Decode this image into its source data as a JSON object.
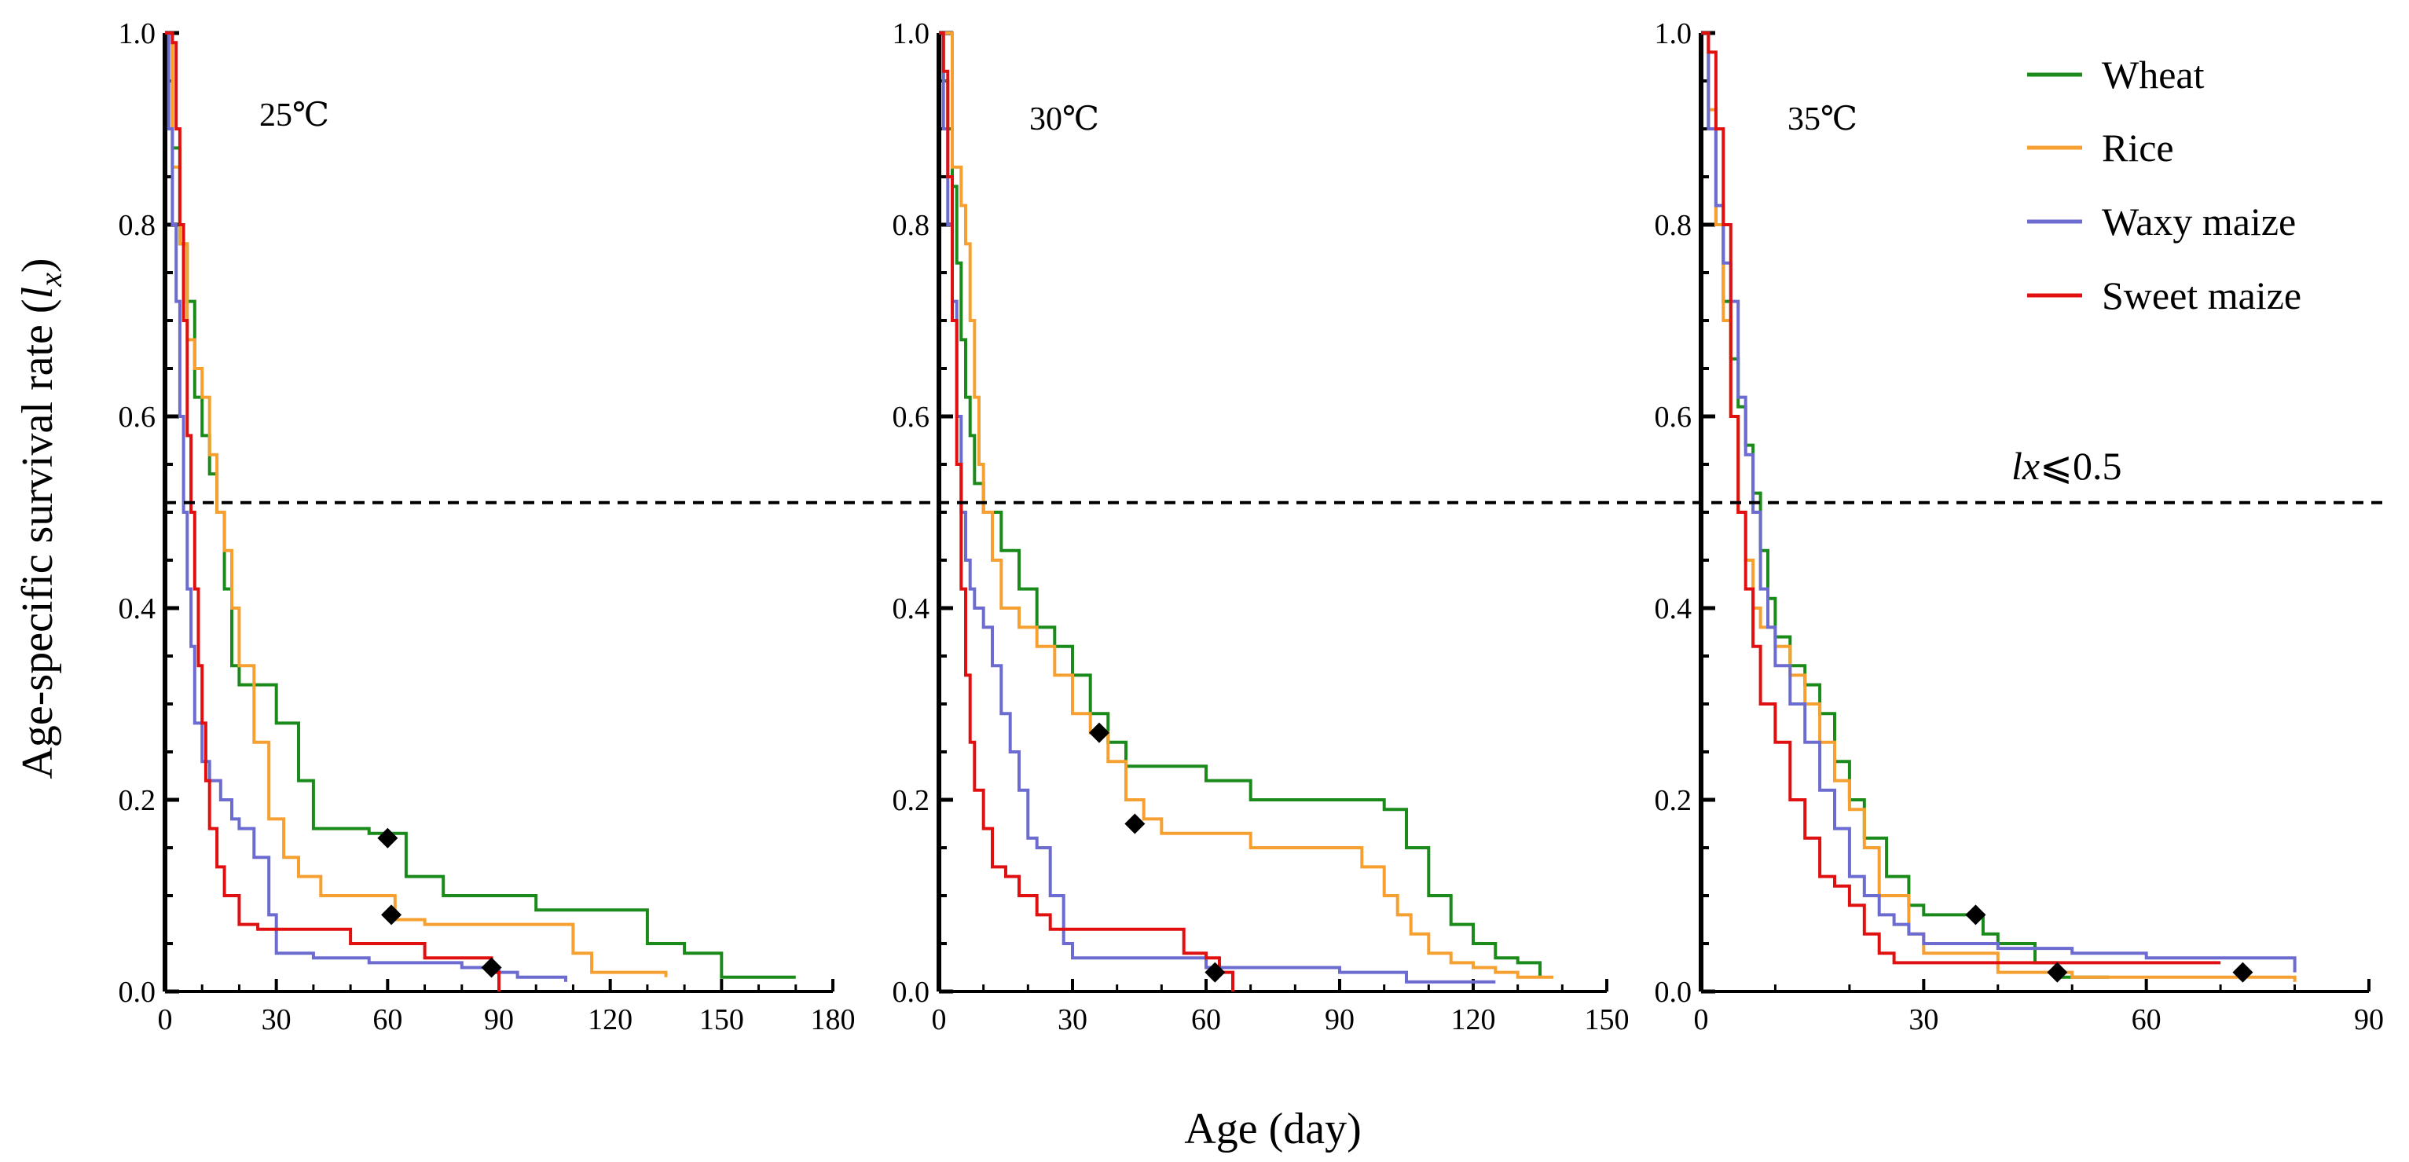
{
  "figure": {
    "ylabel_main": "Age-specific survival rate (",
    "ylabel_italic": "l",
    "ylabel_sub": "x",
    "ylabel_close": ")",
    "xlabel": "Age (day)",
    "threshold_prefix": "lx",
    "threshold_text": "⩽0.5",
    "threshold_value": 0.51
  },
  "legend": [
    {
      "name": "Wheat",
      "color": "#1a8a1a"
    },
    {
      "name": "Rice",
      "color": "#f5a030"
    },
    {
      "name": "Waxy maize",
      "color": "#6b6bd0"
    },
    {
      "name": "Sweet maize",
      "color": "#e01010"
    }
  ],
  "chart_data": [
    {
      "type": "line",
      "step": true,
      "title": "25℃",
      "xlim": [
        0,
        180
      ],
      "xticks": [
        0,
        30,
        60,
        90,
        120,
        150,
        180
      ],
      "ylim": [
        0,
        1.0
      ],
      "yticks": [
        "0.0",
        "0.2",
        "0.4",
        "0.6",
        "0.8",
        "1.0"
      ],
      "series": [
        {
          "name": "Wheat",
          "x": [
            0,
            2,
            4,
            6,
            8,
            10,
            12,
            14,
            16,
            18,
            20,
            22,
            30,
            36,
            40,
            45,
            55,
            65,
            75,
            100,
            130,
            140,
            150,
            170
          ],
          "y": [
            1.0,
            0.88,
            0.78,
            0.72,
            0.62,
            0.58,
            0.54,
            0.5,
            0.42,
            0.34,
            0.32,
            0.32,
            0.28,
            0.22,
            0.17,
            0.17,
            0.165,
            0.12,
            0.1,
            0.085,
            0.05,
            0.04,
            0.015,
            0.015
          ]
        },
        {
          "name": "Rice",
          "x": [
            0,
            2,
            4,
            6,
            8,
            10,
            12,
            14,
            16,
            18,
            20,
            24,
            28,
            32,
            36,
            42,
            50,
            62,
            70,
            110,
            115,
            135
          ],
          "y": [
            1.0,
            0.86,
            0.78,
            0.68,
            0.65,
            0.62,
            0.56,
            0.5,
            0.46,
            0.4,
            0.34,
            0.26,
            0.18,
            0.14,
            0.12,
            0.1,
            0.1,
            0.075,
            0.07,
            0.04,
            0.02,
            0.015
          ]
        },
        {
          "name": "Waxy maize",
          "x": [
            0,
            1,
            2,
            3,
            4,
            5,
            6,
            7,
            8,
            10,
            12,
            15,
            18,
            20,
            24,
            28,
            30,
            35,
            40,
            55,
            80,
            90,
            95,
            108
          ],
          "y": [
            1.0,
            0.9,
            0.8,
            0.72,
            0.6,
            0.5,
            0.42,
            0.36,
            0.28,
            0.24,
            0.22,
            0.2,
            0.18,
            0.17,
            0.14,
            0.08,
            0.04,
            0.04,
            0.035,
            0.03,
            0.025,
            0.02,
            0.015,
            0.01
          ]
        },
        {
          "name": "Sweet maize",
          "x": [
            0,
            2,
            3,
            4,
            5,
            6,
            7,
            8,
            9,
            10,
            11,
            12,
            14,
            16,
            20,
            25,
            40,
            50,
            65,
            70,
            85,
            88,
            90
          ],
          "y": [
            1.0,
            0.99,
            0.9,
            0.8,
            0.7,
            0.58,
            0.5,
            0.42,
            0.34,
            0.28,
            0.22,
            0.17,
            0.13,
            0.1,
            0.07,
            0.065,
            0.065,
            0.05,
            0.05,
            0.035,
            0.035,
            0.02,
            0.0
          ]
        }
      ],
      "markers": [
        {
          "x": 60,
          "y": 0.16
        },
        {
          "x": 61,
          "y": 0.08
        },
        {
          "x": 88,
          "y": 0.025
        }
      ]
    },
    {
      "type": "line",
      "step": true,
      "title": "30℃",
      "xlim": [
        0,
        150
      ],
      "xticks": [
        0,
        30,
        60,
        90,
        120,
        150
      ],
      "ylim": [
        0,
        1.0
      ],
      "yticks": [
        "0.0",
        "0.2",
        "0.4",
        "0.6",
        "0.8",
        "1.0"
      ],
      "series": [
        {
          "name": "Wheat",
          "x": [
            0,
            1,
            2,
            3,
            4,
            5,
            6,
            7,
            8,
            10,
            14,
            18,
            22,
            26,
            30,
            34,
            38,
            42,
            50,
            60,
            70,
            100,
            105,
            110,
            115,
            120,
            125,
            130,
            135
          ],
          "y": [
            1.0,
            0.95,
            0.9,
            0.84,
            0.76,
            0.68,
            0.62,
            0.58,
            0.53,
            0.5,
            0.46,
            0.42,
            0.38,
            0.36,
            0.33,
            0.29,
            0.26,
            0.235,
            0.235,
            0.22,
            0.2,
            0.19,
            0.15,
            0.1,
            0.07,
            0.05,
            0.035,
            0.03,
            0.015
          ]
        },
        {
          "name": "Rice",
          "x": [
            0,
            3,
            5,
            6,
            7,
            8,
            9,
            10,
            12,
            14,
            18,
            22,
            26,
            30,
            34,
            38,
            42,
            46,
            50,
            70,
            95,
            100,
            103,
            106,
            110,
            115,
            120,
            125,
            130,
            138
          ],
          "y": [
            1.0,
            0.86,
            0.82,
            0.78,
            0.7,
            0.62,
            0.55,
            0.5,
            0.45,
            0.4,
            0.38,
            0.36,
            0.33,
            0.29,
            0.27,
            0.24,
            0.2,
            0.18,
            0.165,
            0.15,
            0.13,
            0.1,
            0.08,
            0.06,
            0.04,
            0.03,
            0.025,
            0.02,
            0.015,
            0.015
          ]
        },
        {
          "name": "Waxy maize",
          "x": [
            0,
            1,
            2,
            3,
            4,
            5,
            6,
            7,
            8,
            10,
            12,
            14,
            16,
            18,
            20,
            22,
            25,
            28,
            30,
            40,
            60,
            90,
            105,
            125
          ],
          "y": [
            1.0,
            0.9,
            0.8,
            0.72,
            0.6,
            0.5,
            0.45,
            0.42,
            0.4,
            0.38,
            0.34,
            0.29,
            0.25,
            0.21,
            0.16,
            0.15,
            0.1,
            0.05,
            0.035,
            0.035,
            0.025,
            0.02,
            0.01,
            0.01
          ]
        },
        {
          "name": "Sweet maize",
          "x": [
            0,
            1,
            2,
            3,
            4,
            5,
            6,
            7,
            8,
            10,
            12,
            15,
            18,
            22,
            25,
            40,
            55,
            60,
            63,
            66
          ],
          "y": [
            1.0,
            0.96,
            0.85,
            0.7,
            0.55,
            0.42,
            0.33,
            0.26,
            0.21,
            0.17,
            0.13,
            0.12,
            0.1,
            0.08,
            0.065,
            0.065,
            0.04,
            0.035,
            0.02,
            0.0
          ]
        }
      ],
      "markers": [
        {
          "x": 36,
          "y": 0.27
        },
        {
          "x": 44,
          "y": 0.175
        },
        {
          "x": 62,
          "y": 0.02
        }
      ]
    },
    {
      "type": "line",
      "step": true,
      "title": "35℃",
      "xlim": [
        0,
        90
      ],
      "xticks": [
        0,
        30,
        60,
        90
      ],
      "ylim": [
        0,
        1.0
      ],
      "yticks": [
        "0.0",
        "0.2",
        "0.4",
        "0.6",
        "0.8",
        "1.0"
      ],
      "series": [
        {
          "name": "Wheat",
          "x": [
            0,
            1,
            2,
            3,
            4,
            5,
            6,
            7,
            8,
            9,
            10,
            12,
            14,
            16,
            18,
            20,
            22,
            25,
            28,
            30,
            35,
            38,
            40,
            45,
            48,
            55
          ],
          "y": [
            1.0,
            0.9,
            0.8,
            0.72,
            0.66,
            0.61,
            0.57,
            0.52,
            0.46,
            0.41,
            0.37,
            0.34,
            0.32,
            0.29,
            0.24,
            0.2,
            0.16,
            0.12,
            0.09,
            0.08,
            0.08,
            0.06,
            0.05,
            0.03,
            0.015,
            0.015
          ]
        },
        {
          "name": "Rice",
          "x": [
            0,
            1,
            2,
            3,
            4,
            5,
            6,
            7,
            8,
            10,
            12,
            14,
            16,
            18,
            20,
            22,
            24,
            28,
            30,
            40,
            50,
            60,
            80
          ],
          "y": [
            1.0,
            0.92,
            0.8,
            0.7,
            0.6,
            0.5,
            0.45,
            0.4,
            0.38,
            0.36,
            0.33,
            0.3,
            0.26,
            0.22,
            0.19,
            0.15,
            0.1,
            0.06,
            0.04,
            0.02,
            0.015,
            0.015,
            0.01
          ]
        },
        {
          "name": "Waxy maize",
          "x": [
            0,
            1,
            2,
            3,
            4,
            5,
            6,
            7,
            8,
            9,
            10,
            12,
            14,
            16,
            18,
            20,
            22,
            24,
            26,
            28,
            30,
            40,
            50,
            60,
            80
          ],
          "y": [
            1.0,
            0.9,
            0.82,
            0.76,
            0.72,
            0.62,
            0.56,
            0.5,
            0.42,
            0.38,
            0.34,
            0.3,
            0.26,
            0.21,
            0.17,
            0.12,
            0.1,
            0.08,
            0.07,
            0.06,
            0.05,
            0.045,
            0.04,
            0.035,
            0.02
          ]
        },
        {
          "name": "Sweet maize",
          "x": [
            0,
            1,
            2,
            3,
            4,
            5,
            6,
            7,
            8,
            10,
            12,
            14,
            16,
            18,
            20,
            22,
            24,
            26,
            30,
            35,
            50,
            70
          ],
          "y": [
            1.0,
            0.98,
            0.9,
            0.8,
            0.6,
            0.5,
            0.42,
            0.36,
            0.3,
            0.26,
            0.2,
            0.16,
            0.12,
            0.11,
            0.09,
            0.06,
            0.04,
            0.03,
            0.03,
            0.03,
            0.03,
            0.03
          ]
        }
      ],
      "markers": [
        {
          "x": 37,
          "y": 0.08
        },
        {
          "x": 48,
          "y": 0.02
        },
        {
          "x": 73,
          "y": 0.02
        }
      ]
    }
  ]
}
